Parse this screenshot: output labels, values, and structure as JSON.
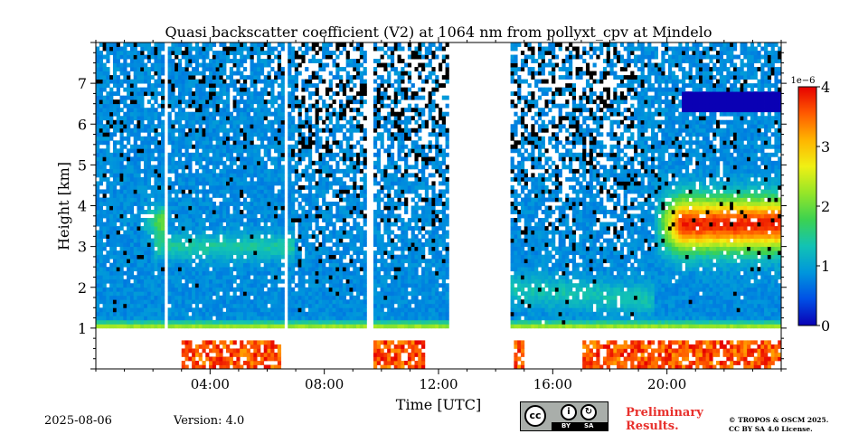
{
  "chart_data": {
    "type": "heatmap",
    "title": "Quasi backscatter coefficient (V2) at 1064 nm from pollyxt_cpv at Mindelo",
    "xlabel": "Time [UTC]",
    "ylabel": "Height [km]",
    "xlim": [
      0,
      24
    ],
    "ylim": [
      0,
      8
    ],
    "x_ticks": [
      {
        "value": 4,
        "label": "04:00"
      },
      {
        "value": 8,
        "label": "08:00"
      },
      {
        "value": 12,
        "label": "12:00"
      },
      {
        "value": 16,
        "label": "16:00"
      },
      {
        "value": 20,
        "label": "20:00"
      }
    ],
    "y_ticks": [
      {
        "value": 1,
        "label": "1"
      },
      {
        "value": 2,
        "label": "2"
      },
      {
        "value": 3,
        "label": "3"
      },
      {
        "value": 4,
        "label": "4"
      },
      {
        "value": 5,
        "label": "5"
      },
      {
        "value": 6,
        "label": "6"
      },
      {
        "value": 7,
        "label": "7"
      }
    ],
    "colorbar": {
      "min": 0,
      "max": 4,
      "multiplier": "1e−6",
      "ticks": [
        {
          "value": 0,
          "label": "0"
        },
        {
          "value": 1,
          "label": "1"
        },
        {
          "value": 2,
          "label": "2"
        },
        {
          "value": 3,
          "label": "3"
        },
        {
          "value": 4,
          "label": "4"
        }
      ],
      "colormap": [
        "#0a00b4",
        "#0050e6",
        "#0096dc",
        "#12c3b4",
        "#3cd250",
        "#96e628",
        "#f0f014",
        "#ffb400",
        "#ff5a00",
        "#e60000"
      ]
    },
    "no_data_periods": [
      [
        12.4,
        14.5
      ]
    ],
    "features": [
      {
        "name": "aerosol layer",
        "start": 19.5,
        "end": 24,
        "bottom_km": 3.0,
        "top_km": 4.1,
        "peak_value": 3.8
      },
      {
        "name": "aerosol layer",
        "start": 1.5,
        "end": 2.5,
        "bottom_km": 3.3,
        "top_km": 3.9,
        "peak_value": 2.3
      },
      {
        "name": "boundary layer top",
        "start": 0,
        "end": 24,
        "height_km": 1.0
      },
      {
        "name": "cloud",
        "start": 20.5,
        "end": 24,
        "bottom_km": 6.3,
        "top_km": 6.8
      }
    ]
  },
  "footer": {
    "date": "2025-08-06",
    "version": "Version: 4.0",
    "license_cc": "cc",
    "license_by": "BY",
    "license_sa": "SA",
    "preliminary_line1": "Preliminary",
    "preliminary_line2": "Results.",
    "copyright_line1": "© TROPOS & OSCM 2025.",
    "copyright_line2": "CC BY SA 4.0 License."
  }
}
